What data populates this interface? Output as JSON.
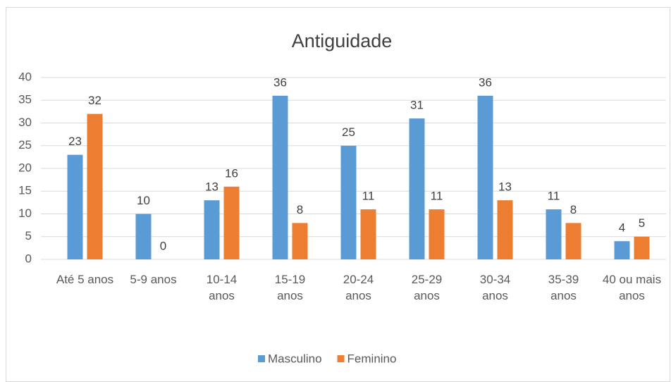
{
  "chart_data": {
    "type": "bar",
    "title": "Antiguidade",
    "categories": [
      "Até 5 anos",
      "5-9 anos",
      "10-14 anos",
      "15-19 anos",
      "20-24 anos",
      "25-29 anos",
      "30-34 anos",
      "35-39 anos",
      "40 ou mais anos"
    ],
    "series": [
      {
        "name": "Masculino",
        "color": "#5b9bd5",
        "values": [
          23,
          10,
          13,
          36,
          25,
          31,
          36,
          11,
          4
        ]
      },
      {
        "name": "Feminino",
        "color": "#ed7d31",
        "values": [
          32,
          0,
          16,
          8,
          11,
          11,
          13,
          8,
          5
        ]
      }
    ],
    "ylim": [
      0,
      40
    ],
    "yticks": [
      0,
      5,
      10,
      15,
      20,
      25,
      30,
      35,
      40
    ],
    "grid": true,
    "legend": "bottom"
  }
}
